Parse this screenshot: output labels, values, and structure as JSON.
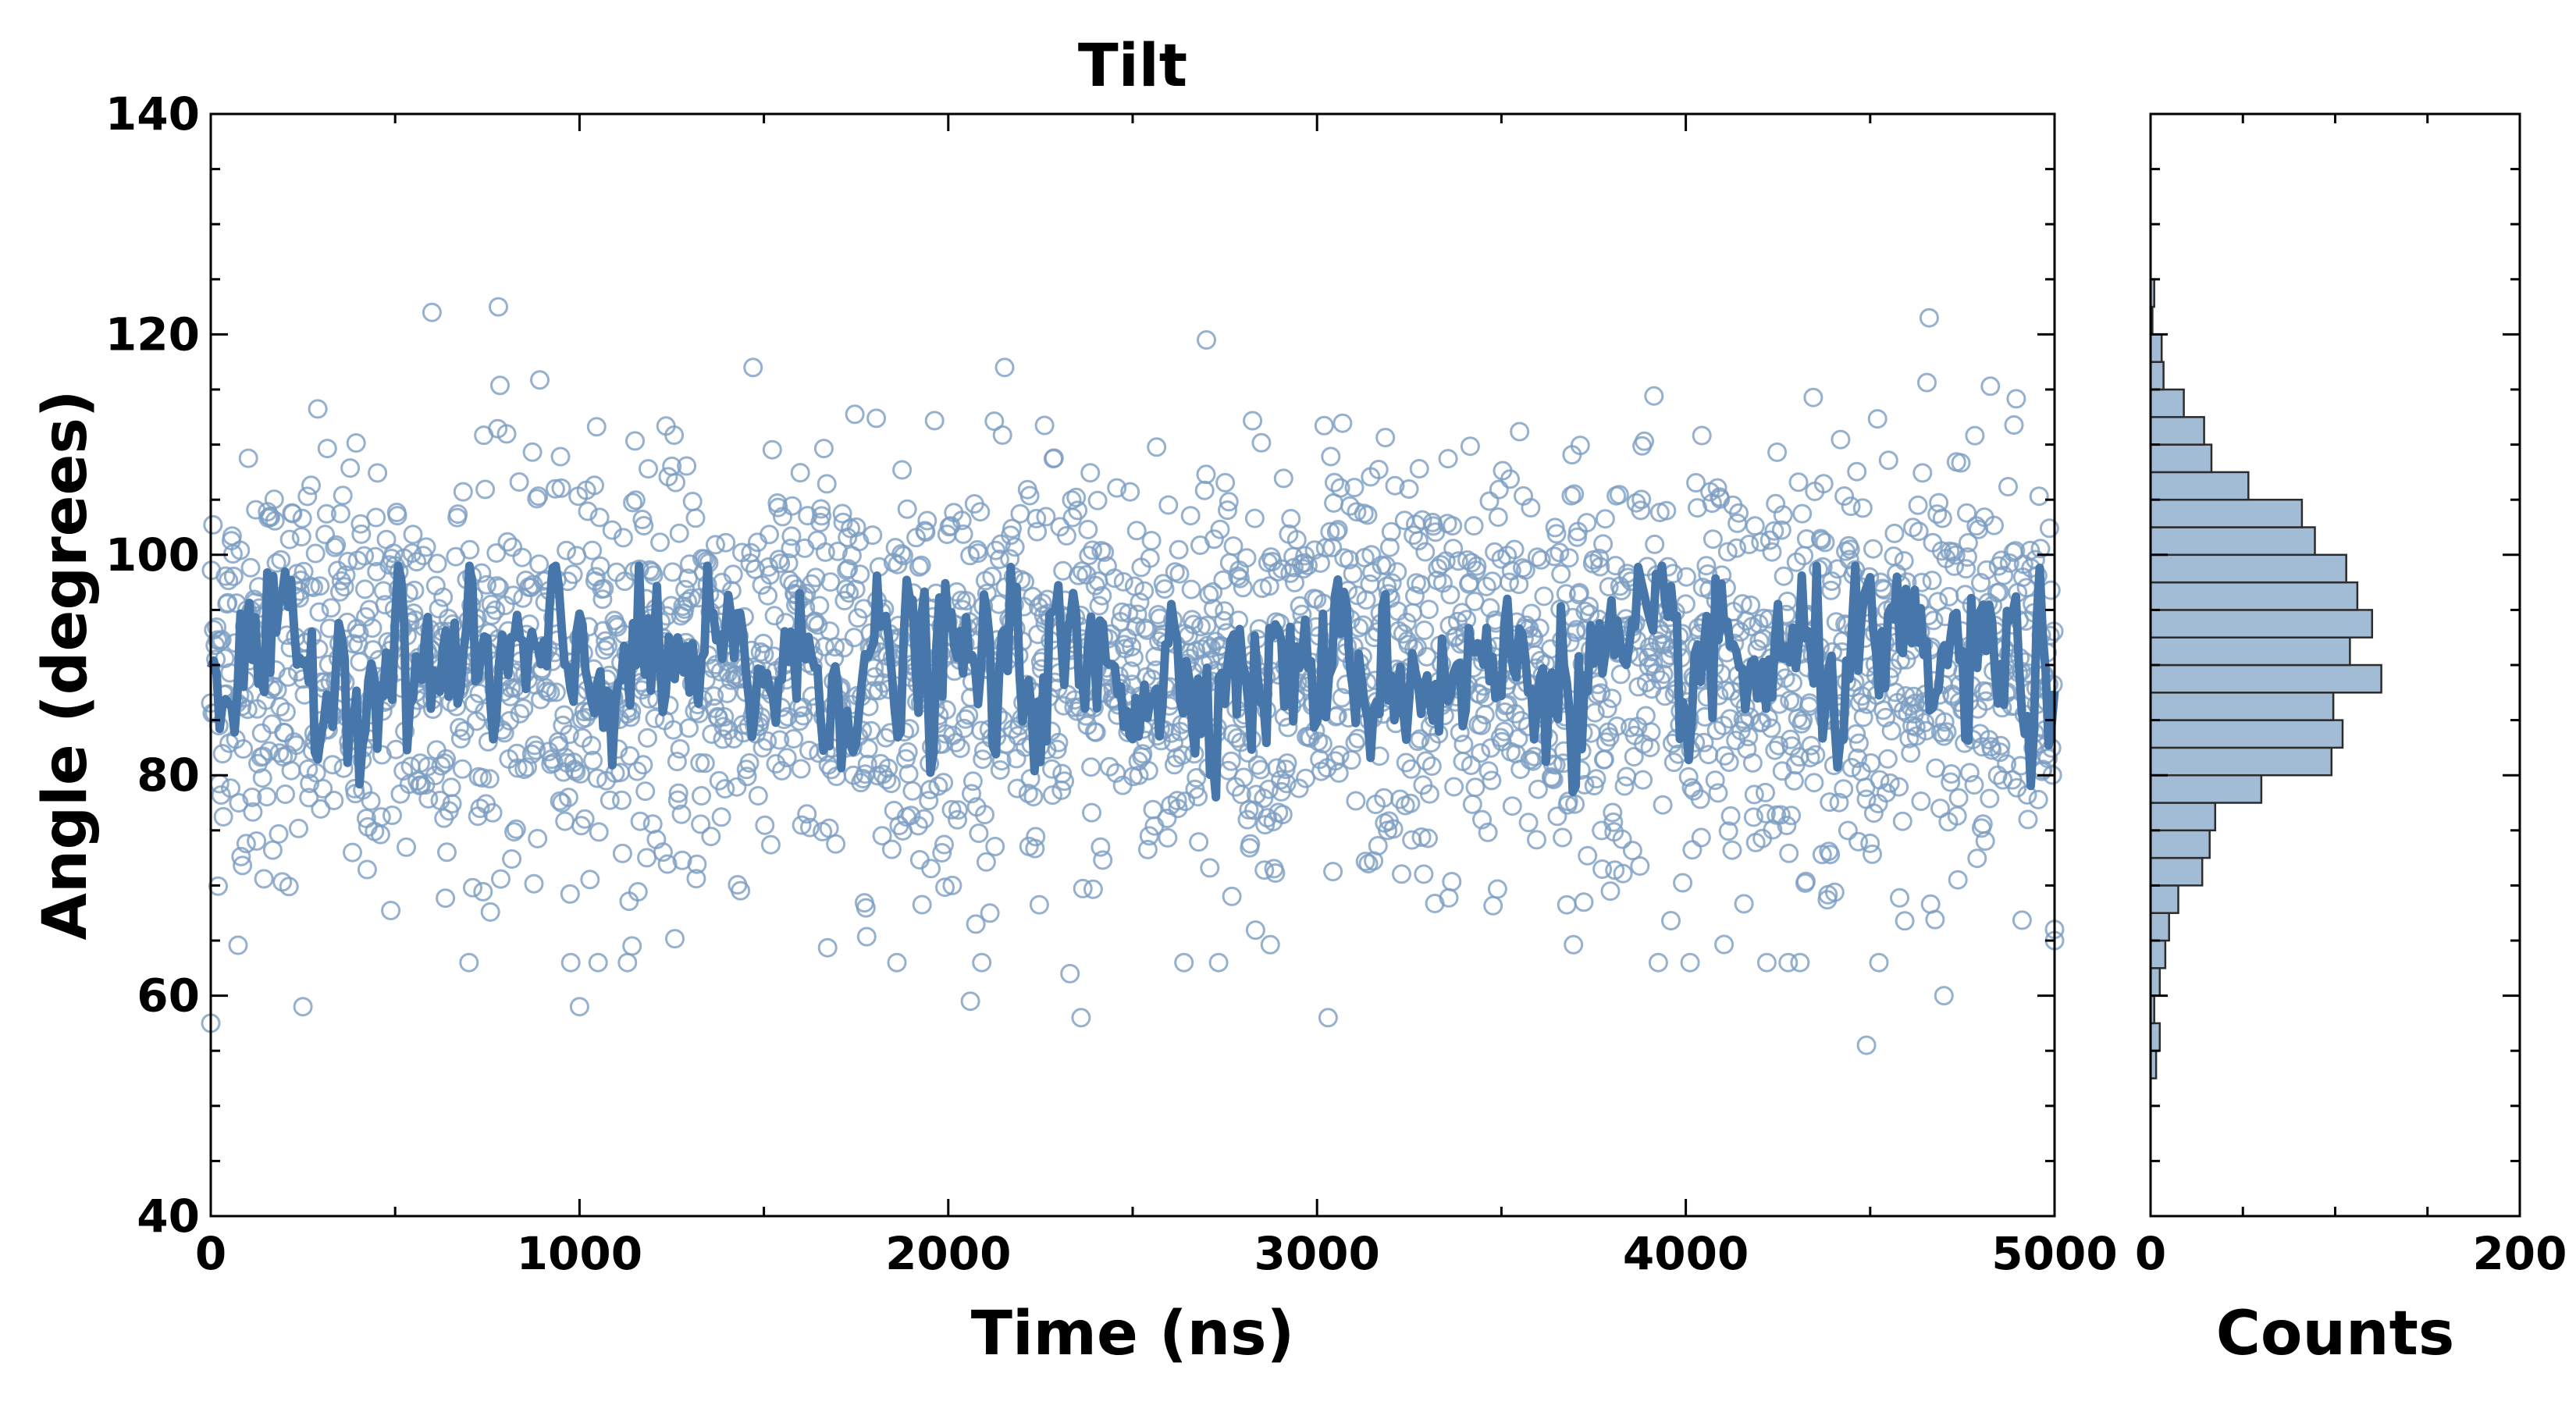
{
  "chart_data": [
    {
      "type": "scatter",
      "title": "Tilt",
      "xlabel": "Time (ns)",
      "ylabel": "Angle (degrees)",
      "xlim": [
        0,
        5000
      ],
      "ylim": [
        40,
        140
      ],
      "xticks": [
        "0",
        "1000",
        "2000",
        "3000",
        "4000",
        "5000"
      ],
      "yticks": [
        "40",
        "60",
        "80",
        "100",
        "120",
        "140"
      ],
      "grid": false,
      "colors": {
        "points": "#7c9ec2",
        "line": "#4676aa"
      },
      "series": [
        {
          "kind": "scatter-open-circles",
          "x_start": 0,
          "x_end": 5000,
          "n_points": 2500,
          "mean": 89.5,
          "std": 9.5,
          "notable_points": [
            {
              "x": 0,
              "y": 57.5
            },
            {
              "x": 250,
              "y": 59
            },
            {
              "x": 600,
              "y": 122
            },
            {
              "x": 780,
              "y": 122.5
            },
            {
              "x": 1000,
              "y": 59
            },
            {
              "x": 1130,
              "y": 63
            },
            {
              "x": 2060,
              "y": 59.5
            },
            {
              "x": 2330,
              "y": 62
            },
            {
              "x": 2360,
              "y": 58
            },
            {
              "x": 2700,
              "y": 119.5
            },
            {
              "x": 3030,
              "y": 58
            },
            {
              "x": 4490,
              "y": 55.5
            },
            {
              "x": 4660,
              "y": 121.5
            },
            {
              "x": 4700,
              "y": 60
            },
            {
              "x": 5000,
              "y": 65
            }
          ]
        },
        {
          "kind": "line-moving-average",
          "x_start": 0,
          "x_end": 5000,
          "mean": 89.5,
          "range": [
            78,
            99
          ]
        }
      ]
    },
    {
      "type": "bar",
      "orientation": "horizontal",
      "xlabel": "Counts",
      "xlim": [
        0,
        200
      ],
      "xticks": [
        "0",
        "200"
      ],
      "ylim": [
        40,
        140
      ],
      "bin_width": 2.5,
      "bin_starts": [
        52.5,
        55,
        57.5,
        60,
        62.5,
        65,
        67.5,
        70,
        72.5,
        75,
        77.5,
        80,
        82.5,
        85,
        87.5,
        90,
        92.5,
        95,
        97.5,
        100,
        102.5,
        105,
        107.5,
        110,
        112.5,
        115,
        117.5,
        120,
        122.5
      ],
      "counts": [
        3,
        5,
        2,
        5,
        8,
        10,
        15,
        28,
        32,
        35,
        60,
        98,
        104,
        99,
        125,
        108,
        120,
        112,
        106,
        89,
        82,
        53,
        33,
        29,
        18,
        7,
        6,
        1,
        2
      ],
      "colors": {
        "fill": "#a3bcd6",
        "edge": "#2c2c2c"
      }
    }
  ]
}
